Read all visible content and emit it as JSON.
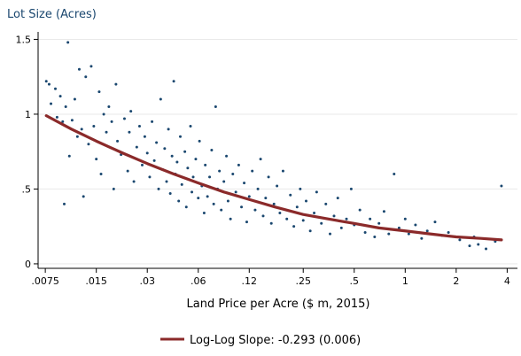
{
  "chart_data": {
    "type": "scatter",
    "xscale": "log",
    "xlabel": "Land Price per Acre ($ m, 2015)",
    "ylabel": "Lot Size (Acres)",
    "xlim": [
      0.0068,
      4.6
    ],
    "ylim": [
      -0.03,
      1.55
    ],
    "xticks": [
      {
        "value": 0.0075,
        "label": ".0075"
      },
      {
        "value": 0.015,
        "label": ".015"
      },
      {
        "value": 0.03,
        "label": ".03"
      },
      {
        "value": 0.06,
        "label": ".06"
      },
      {
        "value": 0.12,
        "label": ".12"
      },
      {
        "value": 0.25,
        "label": ".25"
      },
      {
        "value": 0.5,
        "label": ".5"
      },
      {
        "value": 1,
        "label": "1"
      },
      {
        "value": 2,
        "label": "2"
      },
      {
        "value": 4,
        "label": "4"
      }
    ],
    "yticks": [
      {
        "value": 0,
        "label": "0"
      },
      {
        "value": 0.5,
        "label": ".5"
      },
      {
        "value": 1,
        "label": "1"
      },
      {
        "value": 1.5,
        "label": "1.5"
      }
    ],
    "grid": true,
    "legend_position": "bottom-center",
    "series": [
      {
        "type": "scatter",
        "color": "#1a476f",
        "points": [
          [
            0.0076,
            1.22
          ],
          [
            0.0079,
            1.2
          ],
          [
            0.0081,
            1.07
          ],
          [
            0.0086,
            1.17
          ],
          [
            0.0088,
            0.98
          ],
          [
            0.0092,
            1.12
          ],
          [
            0.0095,
            0.95
          ],
          [
            0.0097,
            0.4
          ],
          [
            0.0099,
            1.05
          ],
          [
            0.0102,
            1.48
          ],
          [
            0.0104,
            0.72
          ],
          [
            0.0108,
            0.96
          ],
          [
            0.0112,
            1.1
          ],
          [
            0.0116,
            0.85
          ],
          [
            0.0119,
            1.3
          ],
          [
            0.0123,
            0.9
          ],
          [
            0.0126,
            0.45
          ],
          [
            0.013,
            1.25
          ],
          [
            0.0135,
            0.8
          ],
          [
            0.014,
            1.32
          ],
          [
            0.0145,
            0.92
          ],
          [
            0.015,
            0.7
          ],
          [
            0.0156,
            1.15
          ],
          [
            0.016,
            0.6
          ],
          [
            0.0166,
            1.0
          ],
          [
            0.0172,
            0.88
          ],
          [
            0.0178,
            1.05
          ],
          [
            0.0185,
            0.95
          ],
          [
            0.019,
            0.5
          ],
          [
            0.0196,
            1.2
          ],
          [
            0.02,
            0.82
          ],
          [
            0.021,
            0.73
          ],
          [
            0.022,
            0.97
          ],
          [
            0.023,
            0.62
          ],
          [
            0.0235,
            0.88
          ],
          [
            0.024,
            1.02
          ],
          [
            0.025,
            0.55
          ],
          [
            0.026,
            0.78
          ],
          [
            0.027,
            0.92
          ],
          [
            0.028,
            0.66
          ],
          [
            0.029,
            0.85
          ],
          [
            0.03,
            0.74
          ],
          [
            0.031,
            0.58
          ],
          [
            0.032,
            0.95
          ],
          [
            0.033,
            0.69
          ],
          [
            0.034,
            0.81
          ],
          [
            0.035,
            0.5
          ],
          [
            0.036,
            1.1
          ],
          [
            0.037,
            0.63
          ],
          [
            0.038,
            0.77
          ],
          [
            0.039,
            0.55
          ],
          [
            0.04,
            0.9
          ],
          [
            0.041,
            0.47
          ],
          [
            0.042,
            0.72
          ],
          [
            0.043,
            1.22
          ],
          [
            0.044,
            0.6
          ],
          [
            0.045,
            0.68
          ],
          [
            0.046,
            0.42
          ],
          [
            0.047,
            0.85
          ],
          [
            0.048,
            0.53
          ],
          [
            0.05,
            0.75
          ],
          [
            0.051,
            0.38
          ],
          [
            0.052,
            0.64
          ],
          [
            0.054,
            0.92
          ],
          [
            0.055,
            0.48
          ],
          [
            0.056,
            0.58
          ],
          [
            0.058,
            0.7
          ],
          [
            0.06,
            0.44
          ],
          [
            0.061,
            0.82
          ],
          [
            0.063,
            0.52
          ],
          [
            0.065,
            0.34
          ],
          [
            0.066,
            0.66
          ],
          [
            0.068,
            0.45
          ],
          [
            0.07,
            0.58
          ],
          [
            0.072,
            0.76
          ],
          [
            0.074,
            0.4
          ],
          [
            0.076,
            1.05
          ],
          [
            0.078,
            0.5
          ],
          [
            0.08,
            0.62
          ],
          [
            0.082,
            0.36
          ],
          [
            0.085,
            0.55
          ],
          [
            0.088,
            0.72
          ],
          [
            0.09,
            0.42
          ],
          [
            0.093,
            0.3
          ],
          [
            0.096,
            0.6
          ],
          [
            0.1,
            0.48
          ],
          [
            0.104,
            0.66
          ],
          [
            0.108,
            0.38
          ],
          [
            0.112,
            0.54
          ],
          [
            0.116,
            0.28
          ],
          [
            0.12,
            0.45
          ],
          [
            0.125,
            0.62
          ],
          [
            0.13,
            0.36
          ],
          [
            0.135,
            0.5
          ],
          [
            0.14,
            0.7
          ],
          [
            0.145,
            0.32
          ],
          [
            0.15,
            0.44
          ],
          [
            0.156,
            0.58
          ],
          [
            0.162,
            0.27
          ],
          [
            0.168,
            0.4
          ],
          [
            0.175,
            0.52
          ],
          [
            0.182,
            0.34
          ],
          [
            0.19,
            0.62
          ],
          [
            0.2,
            0.3
          ],
          [
            0.21,
            0.46
          ],
          [
            0.22,
            0.25
          ],
          [
            0.23,
            0.38
          ],
          [
            0.24,
            0.5
          ],
          [
            0.25,
            0.29
          ],
          [
            0.26,
            0.42
          ],
          [
            0.275,
            0.22
          ],
          [
            0.29,
            0.34
          ],
          [
            0.3,
            0.48
          ],
          [
            0.32,
            0.27
          ],
          [
            0.34,
            0.4
          ],
          [
            0.36,
            0.2
          ],
          [
            0.38,
            0.32
          ],
          [
            0.4,
            0.44
          ],
          [
            0.42,
            0.24
          ],
          [
            0.45,
            0.3
          ],
          [
            0.48,
            0.5
          ],
          [
            0.5,
            0.26
          ],
          [
            0.54,
            0.36
          ],
          [
            0.58,
            0.21
          ],
          [
            0.62,
            0.3
          ],
          [
            0.66,
            0.18
          ],
          [
            0.7,
            0.27
          ],
          [
            0.75,
            0.35
          ],
          [
            0.8,
            0.2
          ],
          [
            0.86,
            0.6
          ],
          [
            0.92,
            0.24
          ],
          [
            1.0,
            0.3
          ],
          [
            1.05,
            0.2
          ],
          [
            1.15,
            0.26
          ],
          [
            1.25,
            0.17
          ],
          [
            1.35,
            0.22
          ],
          [
            1.5,
            0.28
          ],
          [
            1.65,
            0.19
          ],
          [
            1.8,
            0.21
          ],
          [
            2.1,
            0.16
          ],
          [
            2.4,
            0.12
          ],
          [
            2.55,
            0.18
          ],
          [
            2.7,
            0.13
          ],
          [
            3.0,
            0.1
          ],
          [
            3.4,
            0.15
          ],
          [
            3.7,
            0.52
          ]
        ]
      },
      {
        "type": "line",
        "name": "Log-Log Slope: -0.293 (0.006)",
        "color": "#8b2a2a",
        "points": [
          [
            0.0076,
            0.99
          ],
          [
            0.0107,
            0.9
          ],
          [
            0.015,
            0.82
          ],
          [
            0.0215,
            0.74
          ],
          [
            0.03,
            0.67
          ],
          [
            0.043,
            0.6
          ],
          [
            0.06,
            0.54
          ],
          [
            0.085,
            0.48
          ],
          [
            0.12,
            0.43
          ],
          [
            0.17,
            0.38
          ],
          [
            0.25,
            0.33
          ],
          [
            0.35,
            0.3
          ],
          [
            0.5,
            0.27
          ],
          [
            0.7,
            0.24
          ],
          [
            1.0,
            0.22
          ],
          [
            1.4,
            0.2
          ],
          [
            2.0,
            0.18
          ],
          [
            2.8,
            0.17
          ],
          [
            3.7,
            0.16
          ]
        ]
      }
    ]
  }
}
